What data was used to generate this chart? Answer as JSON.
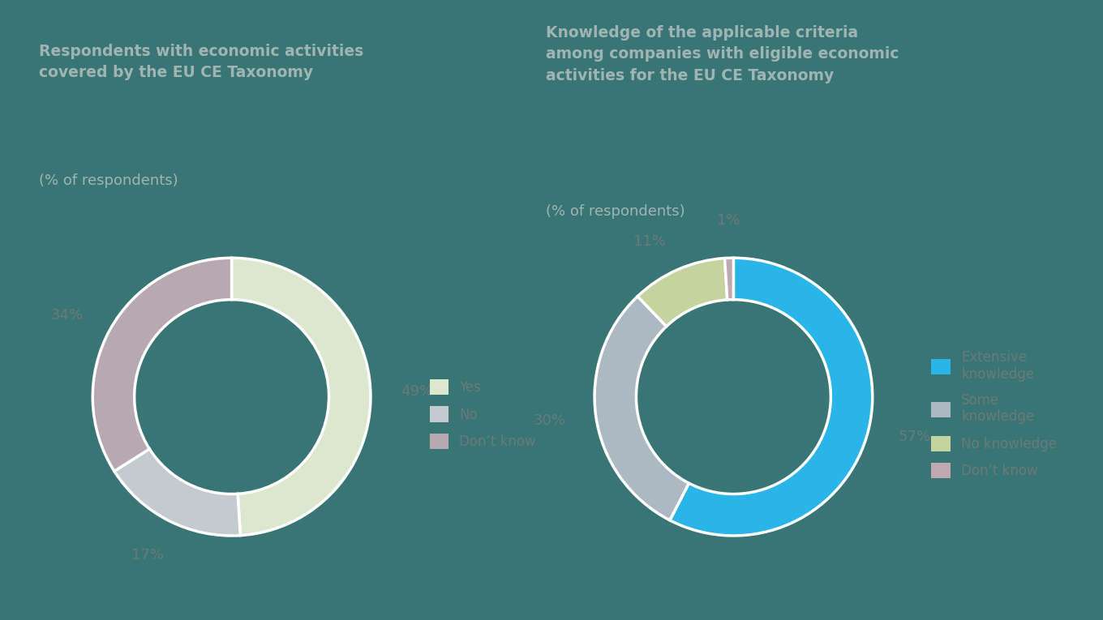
{
  "bg_color": "#3a7575",
  "chart1": {
    "title_bold": "Respondents with economic activities\ncovered by the EU CE Taxonomy",
    "title_normal": "(% of respondents)",
    "values": [
      49,
      17,
      34
    ],
    "labels": [
      "Yes",
      "No",
      "Don’t know"
    ],
    "colors": [
      "#dce8ce",
      "#c3cbcf",
      "#b8a8b2"
    ],
    "pct_labels": [
      "49%",
      "17%",
      "34%"
    ]
  },
  "chart2": {
    "title_bold": "Knowledge of the applicable criteria\namong companies with eligible economic\nactivities for the EU CE Taxonomy",
    "title_normal": "(% of respondents)",
    "values": [
      57,
      30,
      11,
      1
    ],
    "labels": [
      "Extensive\nknowledge",
      "Some\nknowledge",
      "No knowledge",
      "Don’t know"
    ],
    "colors": [
      "#29b5e8",
      "#adb9c2",
      "#c5d49e",
      "#c0a8b0"
    ],
    "pct_labels": [
      "57%",
      "30%",
      "11%",
      "1%"
    ]
  },
  "title_fontsize": 13.5,
  "subtitle_fontsize": 13,
  "pct_fontsize": 13,
  "legend_fontsize": 12,
  "text_color": "#a0b4b4",
  "pct_color": "#6a7a7a",
  "donut_width": 0.3,
  "start_angle": 90
}
